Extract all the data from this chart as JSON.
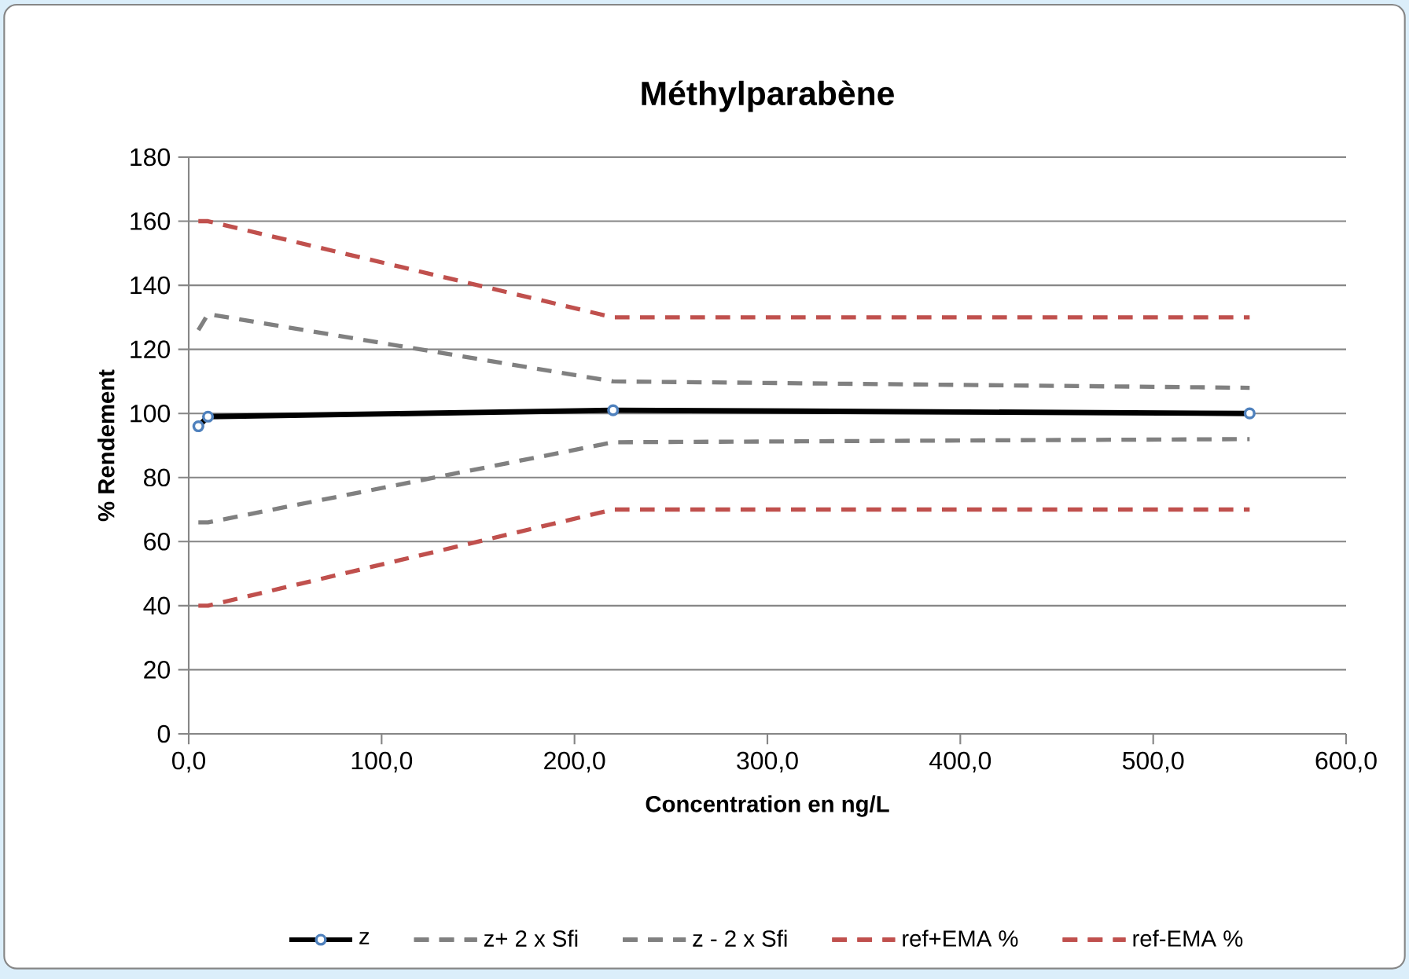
{
  "chart_data": {
    "type": "line",
    "title": "Méthylparabène",
    "xlabel": "Concentration en ng/L",
    "ylabel": "% Rendement",
    "xlim": [
      0,
      600
    ],
    "ylim": [
      0,
      180
    ],
    "xticks": [
      {
        "value": 0,
        "label": "0,0"
      },
      {
        "value": 100,
        "label": "100,0"
      },
      {
        "value": 200,
        "label": "200,0"
      },
      {
        "value": 300,
        "label": "300,0"
      },
      {
        "value": 400,
        "label": "400,0"
      },
      {
        "value": 500,
        "label": "500,0"
      },
      {
        "value": 600,
        "label": "600,0"
      }
    ],
    "yticks": [
      0,
      20,
      40,
      60,
      80,
      100,
      120,
      140,
      160,
      180
    ],
    "grid": "y",
    "legend": "bottom",
    "series": [
      {
        "name": "z",
        "color": "#000000",
        "line_style": "solid",
        "marker": "circle",
        "x": [
          5,
          10,
          220,
          550
        ],
        "values": [
          96,
          99,
          101,
          100
        ]
      },
      {
        "name": "z+ 2 x Sfi",
        "color": "#808080",
        "line_style": "dashed",
        "marker": "none",
        "x": [
          5,
          10,
          220,
          550
        ],
        "values": [
          126,
          131,
          110,
          108
        ]
      },
      {
        "name": "z - 2 x Sfi",
        "color": "#808080",
        "line_style": "dashed",
        "marker": "none",
        "x": [
          5,
          10,
          220,
          550
        ],
        "values": [
          66,
          66,
          91,
          92
        ]
      },
      {
        "name": "ref+EMA %",
        "color": "#c0504d",
        "line_style": "dashed",
        "marker": "none",
        "x": [
          5,
          10,
          220,
          550
        ],
        "values": [
          160,
          160,
          130,
          130
        ]
      },
      {
        "name": "ref-EMA %",
        "color": "#c0504d",
        "line_style": "dashed",
        "marker": "none",
        "x": [
          5,
          10,
          220,
          550
        ],
        "values": [
          40,
          40,
          70,
          70
        ]
      }
    ]
  }
}
